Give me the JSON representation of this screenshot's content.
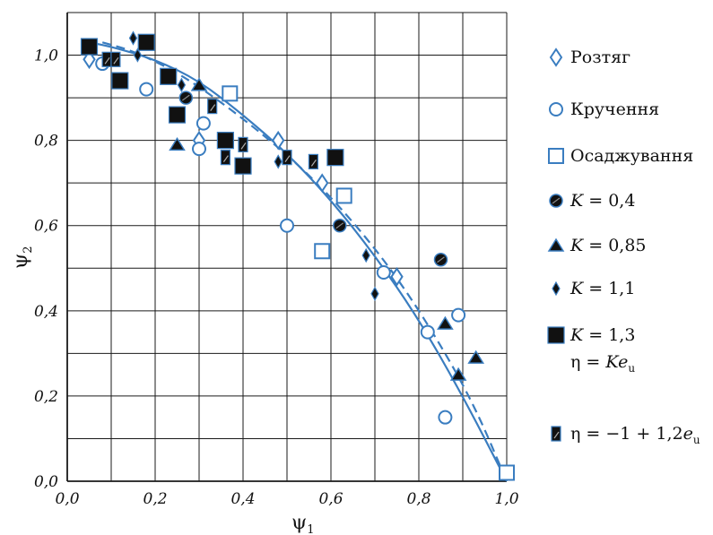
{
  "chart_data": {
    "type": "scatter",
    "xlabel": "ψ",
    "xlabel_sub": "1",
    "ylabel": "ψ",
    "ylabel_sub": "2",
    "xlim": [
      0,
      1
    ],
    "ylim": [
      0,
      1.1
    ],
    "grid": true,
    "x_ticks": [
      0,
      0.2,
      0.4,
      0.6,
      0.8,
      1.0
    ],
    "x_tick_labels": [
      "0,0",
      "0,2",
      "0,4",
      "0,6",
      "0,8",
      "1,0"
    ],
    "y_ticks": [
      0,
      0.2,
      0.4,
      0.6,
      0.8,
      1.0
    ],
    "y_tick_labels": [
      "0,0",
      "0,2",
      "0,4",
      "0,6",
      "0,8",
      "1,0"
    ],
    "legend_position": "right",
    "colors": {
      "accent": "#3a7dc0",
      "marker_fill": "#111111",
      "grid": "#1a1a1a"
    },
    "series": [
      {
        "name": "Розтяг",
        "marker": "diamond-open",
        "x": [
          0.05,
          0.58,
          0.75,
          0.48,
          0.3
        ],
        "y": [
          0.99,
          0.7,
          0.48,
          0.8,
          0.8
        ]
      },
      {
        "name": "Кручення",
        "marker": "circle-open",
        "x": [
          0.08,
          0.18,
          0.31,
          0.3,
          0.5,
          0.72,
          0.82,
          0.89,
          0.86
        ],
        "y": [
          0.98,
          0.92,
          0.84,
          0.78,
          0.6,
          0.49,
          0.35,
          0.39,
          0.15
        ]
      },
      {
        "name": "Осаджування",
        "marker": "square-open",
        "x": [
          0.37,
          0.58,
          0.63,
          1.0
        ],
        "y": [
          0.91,
          0.54,
          0.67,
          0.02
        ]
      },
      {
        "name": "K = 0,4",
        "marker": "circle-filled",
        "x": [
          0.27,
          0.62,
          0.85
        ],
        "y": [
          0.9,
          0.6,
          0.52
        ]
      },
      {
        "name": "K = 0,85",
        "marker": "triangle-filled",
        "x": [
          0.25,
          0.3,
          0.86,
          0.89,
          0.93
        ],
        "y": [
          0.79,
          0.93,
          0.37,
          0.25,
          0.29
        ]
      },
      {
        "name": "K = 1,1",
        "marker": "diamond-filled",
        "x": [
          0.15,
          0.16,
          0.48,
          0.68,
          0.7,
          0.26
        ],
        "y": [
          1.04,
          1.0,
          0.75,
          0.53,
          0.44,
          0.93
        ]
      },
      {
        "name": "K = 1,3",
        "marker": "square-filled",
        "x": [
          0.05,
          0.12,
          0.18,
          0.23,
          0.25,
          0.36,
          0.4,
          0.61
        ],
        "y": [
          1.02,
          0.94,
          1.03,
          0.95,
          0.86,
          0.8,
          0.74,
          0.76
        ]
      },
      {
        "name": "η = −1 + 1,2e",
        "marker": "half-square",
        "x": [
          0.09,
          0.11,
          0.33,
          0.36,
          0.4,
          0.5,
          0.56
        ],
        "y": [
          0.99,
          0.99,
          0.88,
          0.76,
          0.79,
          0.76,
          0.75
        ]
      }
    ],
    "curves": [
      {
        "style": "solid",
        "x": [
          0.05,
          0.1,
          0.2,
          0.3,
          0.4,
          0.5,
          0.6,
          0.7,
          0.8,
          0.9,
          1.0
        ],
        "y": [
          1.03,
          1.02,
          0.99,
          0.94,
          0.86,
          0.77,
          0.66,
          0.53,
          0.38,
          0.2,
          0.0
        ]
      },
      {
        "style": "dashed",
        "x": [
          0.08,
          0.15,
          0.25,
          0.35,
          0.45,
          0.55,
          0.65,
          0.75,
          0.85,
          0.93,
          1.0
        ],
        "y": [
          1.03,
          1.01,
          0.96,
          0.89,
          0.81,
          0.72,
          0.61,
          0.48,
          0.32,
          0.17,
          0.0
        ]
      }
    ],
    "legend": [
      {
        "marker": "diamond-open",
        "text": "Розтяг"
      },
      {
        "marker": "circle-open",
        "text": "Кручення"
      },
      {
        "marker": "square-open",
        "text": "Осаджування"
      },
      {
        "marker": "circle-filled",
        "k": "K",
        "text": "= 0,4"
      },
      {
        "marker": "triangle-filled",
        "k": "K",
        "text": "= 0,85"
      },
      {
        "marker": "diamond-filled",
        "k": "K",
        "text": "= 1,1"
      },
      {
        "marker": "square-filled",
        "k": "K",
        "text": "= 1,3"
      },
      {
        "marker": "none",
        "eta": "η = Ke",
        "eta_sub": "u"
      },
      {
        "marker": "half-square",
        "eta": "η = −1 + 1,2e",
        "eta_sub": "u"
      }
    ]
  }
}
